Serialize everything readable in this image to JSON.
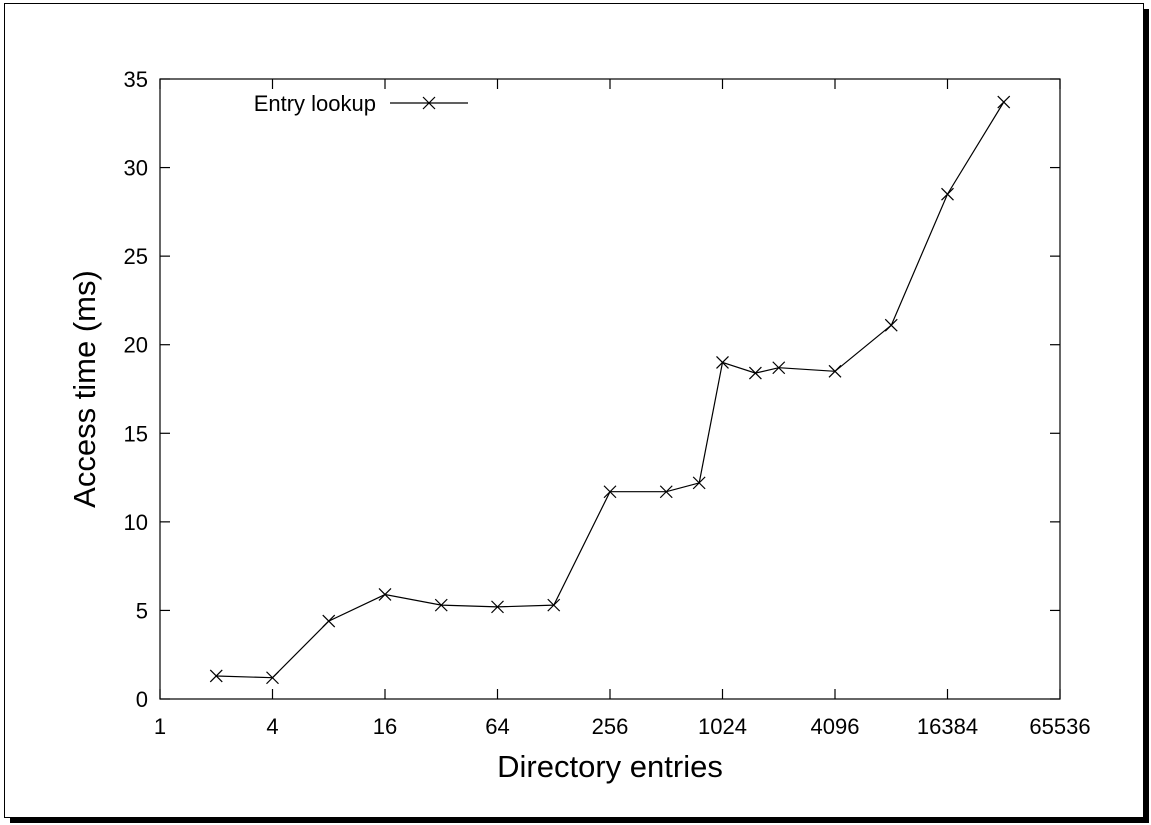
{
  "chart_data": {
    "type": "line",
    "xlabel": "Directory entries",
    "ylabel": "Access time (ms)",
    "x_scale": "log2",
    "xlim": [
      1,
      65536
    ],
    "ylim": [
      0,
      35
    ],
    "x_ticks": [
      1,
      4,
      16,
      64,
      256,
      1024,
      4096,
      16384,
      65536
    ],
    "y_ticks": [
      0,
      5,
      10,
      15,
      20,
      25,
      30,
      35
    ],
    "grid": false,
    "legend_position": "top-left",
    "series": [
      {
        "name": "Entry lookup",
        "color": "#000000",
        "marker": "x",
        "x": [
          2,
          4,
          8,
          16,
          32,
          64,
          128,
          256,
          512,
          768,
          1024,
          1536,
          2048,
          4096,
          8192,
          16384,
          32768
        ],
        "y": [
          1.3,
          1.2,
          4.4,
          5.9,
          5.3,
          5.2,
          5.3,
          11.7,
          11.7,
          12.2,
          19.0,
          18.4,
          18.7,
          18.5,
          21.1,
          28.5,
          33.7
        ]
      }
    ]
  }
}
